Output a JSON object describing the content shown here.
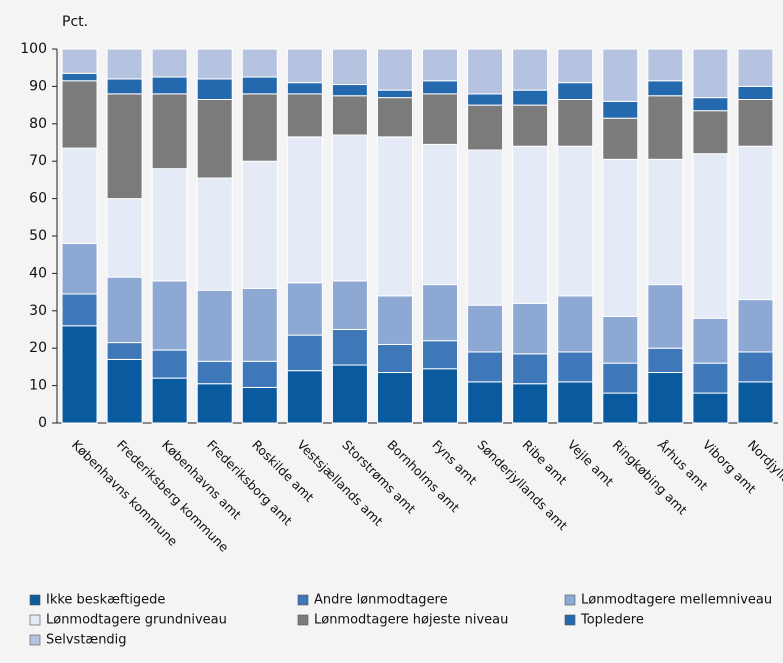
{
  "chart_data": {
    "type": "stacked_bar",
    "ylabel": "Pct.",
    "categories": [
      "Københavns kommune",
      "Frederiksberg kommune",
      "Københavns amt",
      "Frederiksborg amt",
      "Roskilde amt",
      "Vestsjællands amt",
      "Storstrøms amt",
      "Bornholms amt",
      "Fyns amt",
      "Sønderjyllands amt",
      "Ribe amt",
      "Vejle amt",
      "Ringkøbing amt",
      "Århus amt",
      "Viborg amt",
      "Nordjyllands amt"
    ],
    "series": [
      {
        "name": "Ikke  beskæftigede",
        "color": "#0a5aa0",
        "values": [
          26,
          17,
          12,
          10.5,
          9.5,
          14,
          15.5,
          13.5,
          14.5,
          11,
          10.5,
          11,
          8,
          13.5,
          8,
          11
        ]
      },
      {
        "name": "Andre lønmodtagere",
        "color": "#3f78b8",
        "values": [
          8.5,
          4.5,
          7.5,
          6,
          7,
          9.5,
          9.5,
          7.5,
          7.5,
          8,
          8,
          8,
          8,
          6.5,
          8,
          8
        ]
      },
      {
        "name": "Lønmodtagere mellemniveau",
        "color": "#8ea8d4",
        "values": [
          13.5,
          17.5,
          18.5,
          19,
          19.5,
          14,
          13,
          13,
          15,
          12.5,
          13.5,
          15,
          12.5,
          17,
          12,
          14
        ]
      },
      {
        "name": "Lønmodtagere grundniveau",
        "color": "#e4eaf6",
        "values": [
          25.5,
          21,
          30,
          30,
          34,
          39,
          39,
          42.5,
          37.5,
          41.5,
          42,
          40,
          42,
          33.5,
          44,
          41
        ]
      },
      {
        "name": "Lønmodtagere højeste niveau",
        "color": "#7b7b7b",
        "values": [
          18,
          28,
          20,
          21,
          18,
          11.5,
          10.5,
          10.5,
          13.5,
          12,
          11,
          12.5,
          11,
          17,
          11.5,
          12.5
        ]
      },
      {
        "name": "Topledere",
        "color": "#2468ae",
        "values": [
          2,
          4,
          4.5,
          5.5,
          4.5,
          3,
          3,
          2,
          3.5,
          3,
          4,
          4.5,
          4.5,
          4,
          3.5,
          3.5
        ]
      },
      {
        "name": "Selvstændig",
        "color": "#b6c3e0",
        "values": [
          6.5,
          8,
          7.5,
          8,
          7.5,
          9,
          9.5,
          11,
          8.5,
          12,
          11,
          9,
          14,
          8.5,
          13,
          10
        ]
      }
    ],
    "ylim": [
      0,
      100
    ],
    "yticks": [
      0,
      10,
      20,
      30,
      40,
      50,
      60,
      70,
      80,
      90,
      100
    ],
    "grid": false
  }
}
